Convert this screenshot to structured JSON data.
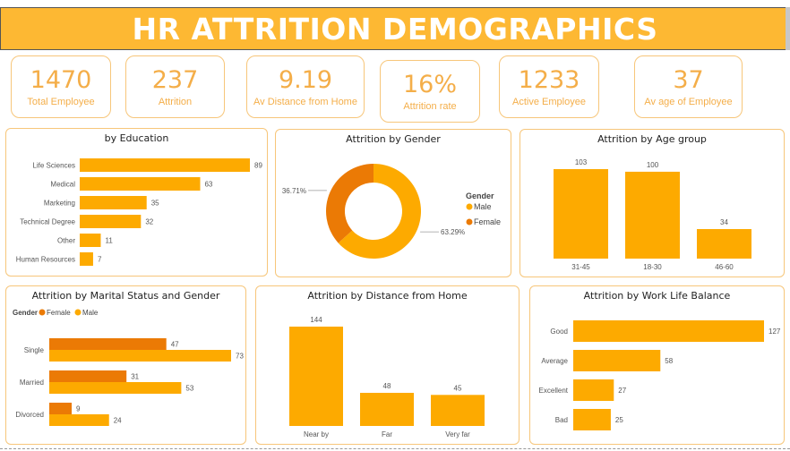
{
  "title": "HR ATTRITION DEMOGRAPHICS",
  "colors": {
    "primary": "#FDAA00",
    "secondary": "#EB7A05",
    "kpi": "#F4AE49",
    "title_bg": "#FDB833"
  },
  "kpis": [
    {
      "value": "1470",
      "label": "Total Employee"
    },
    {
      "value": "237",
      "label": "Attrition"
    },
    {
      "value": "9.19",
      "label": "Av Distance from Home"
    },
    {
      "value": "16%",
      "label": "Attrition rate"
    },
    {
      "value": "1233",
      "label": "Active Employee"
    },
    {
      "value": "37",
      "label": "Av age of Employee"
    }
  ],
  "chart_data": [
    {
      "type": "bar",
      "orientation": "horizontal",
      "title": "by Education",
      "categories": [
        "Life Sciences",
        "Medical",
        "Marketing",
        "Technical Degree",
        "Other",
        "Human Resources"
      ],
      "values": [
        89,
        63,
        35,
        32,
        11,
        7
      ]
    },
    {
      "type": "pie",
      "donut": true,
      "title": "Attrition by Gender",
      "legend_title": "Gender",
      "categories": [
        "Male",
        "Female"
      ],
      "values": [
        63.29,
        36.71
      ],
      "value_labels": [
        "63.29%",
        "36.71%"
      ],
      "legend": "right"
    },
    {
      "type": "bar",
      "orientation": "vertical",
      "title": "Attrition by Age group",
      "categories": [
        "31-45",
        "18-30",
        "46-60"
      ],
      "values": [
        103,
        100,
        34
      ]
    },
    {
      "type": "bar",
      "orientation": "horizontal",
      "grouped": true,
      "title": "Attrition by Marital Status and Gender",
      "legend_title": "Gender",
      "legend": "top-left",
      "categories": [
        "Single",
        "Married",
        "Divorced"
      ],
      "series": [
        {
          "name": "Female",
          "values": [
            47,
            31,
            9
          ]
        },
        {
          "name": "Male",
          "values": [
            73,
            53,
            24
          ]
        }
      ]
    },
    {
      "type": "bar",
      "orientation": "vertical",
      "title": "Attrition by Distance from Home",
      "categories": [
        "Near by",
        "Far",
        "Very far"
      ],
      "values": [
        144,
        48,
        45
      ]
    },
    {
      "type": "bar",
      "orientation": "horizontal",
      "title": "Attrition by Work Life Balance",
      "categories": [
        "Good",
        "Average",
        "Excellent",
        "Bad"
      ],
      "values": [
        127,
        58,
        27,
        25
      ]
    }
  ]
}
